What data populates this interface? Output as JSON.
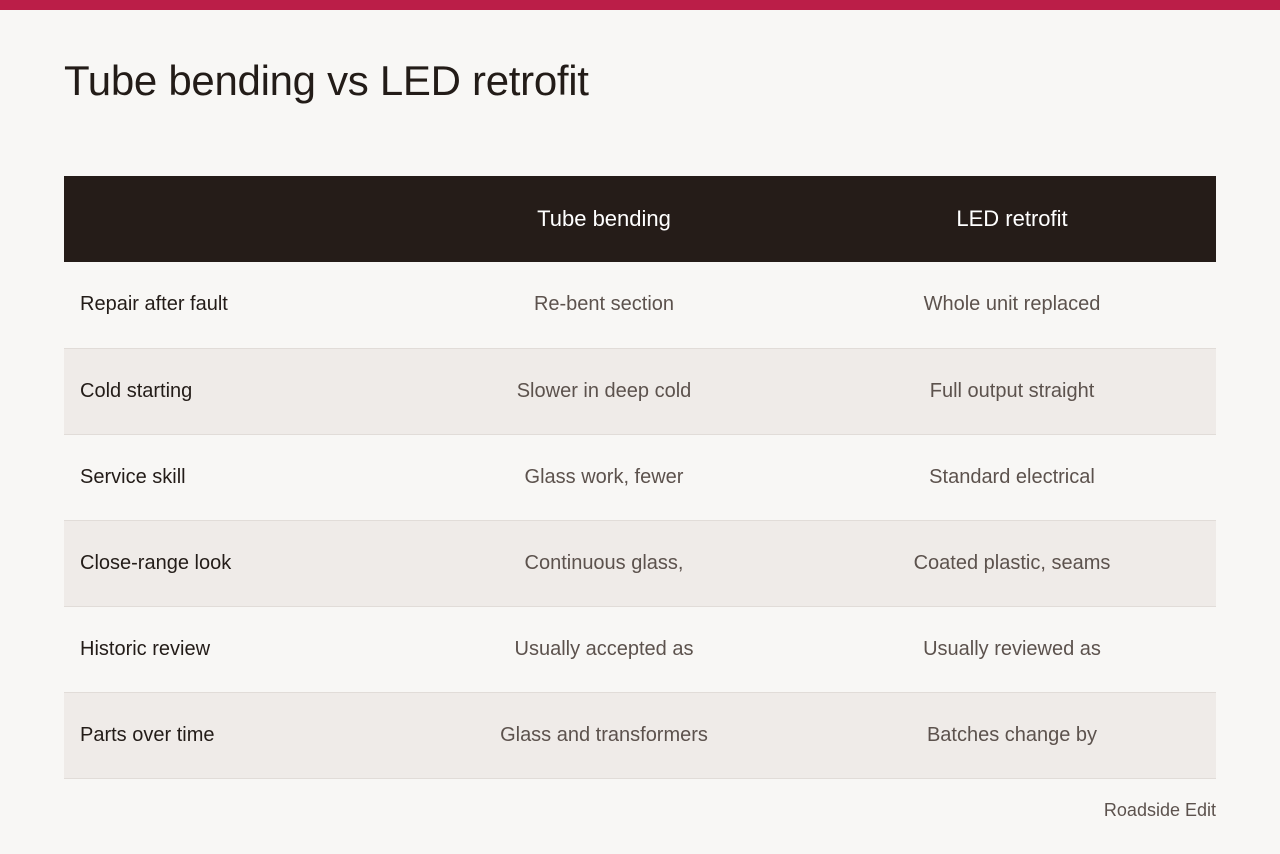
{
  "accent_color": "#bb1e48",
  "header_color": "#251c18",
  "title": "Tube bending vs LED retrofit",
  "table": {
    "columns": [
      "",
      "Tube bending",
      "LED retrofit"
    ],
    "rows": [
      {
        "label": "Repair after fault",
        "a": "Re-bent section",
        "b": "Whole unit replaced"
      },
      {
        "label": "Cold starting",
        "a": "Slower in deep cold",
        "b": "Full output straight"
      },
      {
        "label": "Service skill",
        "a": "Glass work, fewer",
        "b": "Standard electrical"
      },
      {
        "label": "Close-range look",
        "a": "Continuous glass,",
        "b": "Coated plastic, seams"
      },
      {
        "label": "Historic review",
        "a": "Usually accepted as",
        "b": "Usually reviewed as"
      },
      {
        "label": "Parts over time",
        "a": "Glass and transformers",
        "b": "Batches change by"
      }
    ]
  },
  "footer": {
    "credit": "Roadside Edit"
  }
}
